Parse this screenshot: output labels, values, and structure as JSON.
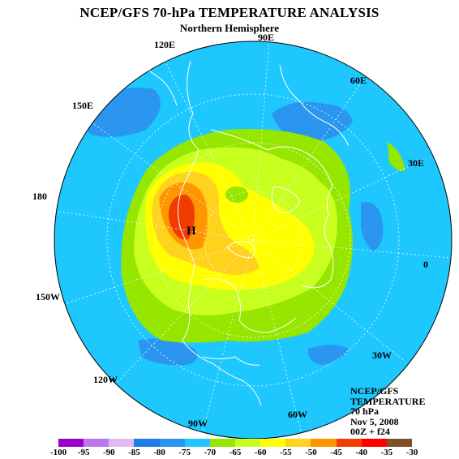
{
  "title": "NCEP/GFS 70-hPa TEMPERATURE ANALYSIS",
  "subtitle": "Northern Hemisphere",
  "high_marker": "H",
  "longitude_labels": {
    "lon_90E": "90E",
    "lon_120E": "120E",
    "lon_60E": "60E",
    "lon_150E": "150E",
    "lon_30E": "30E",
    "lon_180": "180",
    "lon_0": "0",
    "lon_150W": "150W",
    "lon_30W": "30W",
    "lon_120W": "120W",
    "lon_60W": "60W",
    "lon_90W": "90W"
  },
  "info": {
    "line1": "NCEP/GFS",
    "line2": "TEMPERATURE",
    "line3": "70 hPa",
    "line4": "Nov 5, 2008",
    "line5": "00Z + f24"
  },
  "legend": {
    "ticks": [
      "-100",
      "-95",
      "-90",
      "-85",
      "-80",
      "-75",
      "-70",
      "-65",
      "-60",
      "-55",
      "-50",
      "-45",
      "-40",
      "-35",
      "-30"
    ],
    "colors": [
      "#9900cc",
      "#bb77ee",
      "#ddbbee",
      "#1e7de6",
      "#2a96f0",
      "#1ec8ff",
      "#96e600",
      "#c8ff1e",
      "#ffff00",
      "#ffd21e",
      "#ff9600",
      "#f03c00",
      "#ff0000",
      "#80502a",
      "#808080"
    ]
  },
  "fill_colors": {
    "ocean_background": "#1ec8ff",
    "cold_patches": "#2a96f0",
    "band_70_65": "#96e600",
    "band_65_60": "#c8ff1e",
    "band_60_55": "#ffff00",
    "band_55_50": "#ffd21e",
    "band_50_45": "#ff9600",
    "band_45_40": "#f03c00"
  }
}
